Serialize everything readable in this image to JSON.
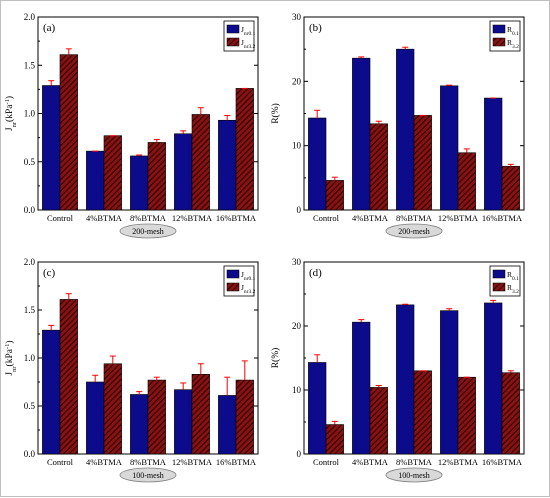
{
  "colors": {
    "series1": "#0b0b8c",
    "series2": "#8b1111",
    "error": "#ff0000",
    "mesh_fill": "#d9d9d9"
  },
  "chart_data": [
    {
      "type": "bar",
      "tag": "(a)",
      "ylabel_main": "J",
      "ylabel_sub": "nr",
      "ylabel_unit": "(kPa",
      "ylabel_sup": "-1",
      "ylabel_close": ")",
      "ylim": [
        0,
        2.0
      ],
      "yticks": [
        "0.0",
        "0.5",
        "1.0",
        "1.5",
        "2.0"
      ],
      "categories": [
        "Control",
        "4%BTMA",
        "8%BTMA",
        "12%BTMA",
        "16%BTMA"
      ],
      "mesh_label": "200-mesh",
      "mesh_under": 2,
      "legend_position": "top-right",
      "series": [
        {
          "name_main": "J",
          "name_sub": "nr0.1",
          "values": [
            1.29,
            0.61,
            0.56,
            0.79,
            0.93
          ],
          "errors": [
            0.05,
            0.0,
            0.01,
            0.03,
            0.05
          ]
        },
        {
          "name_main": "J",
          "name_sub": "nr3.2",
          "values": [
            1.61,
            0.77,
            0.7,
            0.99,
            1.26
          ],
          "errors": [
            0.06,
            0.0,
            0.03,
            0.07,
            0.0
          ]
        }
      ]
    },
    {
      "type": "bar",
      "tag": "(b)",
      "ylabel_main": "R(%)",
      "ylabel_sub": "",
      "ylabel_unit": "",
      "ylabel_sup": "",
      "ylabel_close": "",
      "ylim": [
        0,
        30
      ],
      "yticks": [
        "0",
        "10",
        "20",
        "30"
      ],
      "categories": [
        "Control",
        "4%BTMA",
        "8%BTMA",
        "12%BTMA",
        "16%BTMA"
      ],
      "mesh_label": "200-mesh",
      "mesh_under": 2,
      "legend_position": "top-right",
      "series": [
        {
          "name_main": "R",
          "name_sub": "0.1",
          "values": [
            14.3,
            23.6,
            25.0,
            19.3,
            17.4
          ],
          "errors": [
            1.2,
            0.2,
            0.3,
            0.1,
            0.0
          ]
        },
        {
          "name_main": "R",
          "name_sub": "3.2",
          "values": [
            4.6,
            13.4,
            14.7,
            8.9,
            6.8
          ],
          "errors": [
            0.5,
            0.4,
            0.0,
            0.6,
            0.3
          ]
        }
      ]
    },
    {
      "type": "bar",
      "tag": "(c)",
      "ylabel_main": "J",
      "ylabel_sub": "nr",
      "ylabel_unit": "(kPa",
      "ylabel_sup": "-1",
      "ylabel_close": ")",
      "ylim": [
        0,
        2.0
      ],
      "yticks": [
        "0.0",
        "0.5",
        "1.0",
        "1.5",
        "2.0"
      ],
      "categories": [
        "Control",
        "4%BTMA",
        "8%BTMA",
        "12%BTMA",
        "16%BTMA"
      ],
      "mesh_label": "100-mesh",
      "mesh_under": 2,
      "legend_position": "top-right",
      "series": [
        {
          "name_main": "J",
          "name_sub": "nr0.1",
          "values": [
            1.29,
            0.75,
            0.62,
            0.67,
            0.61
          ],
          "errors": [
            0.05,
            0.07,
            0.03,
            0.07,
            0.19
          ]
        },
        {
          "name_main": "J",
          "name_sub": "nr3.2",
          "values": [
            1.61,
            0.94,
            0.77,
            0.83,
            0.77
          ],
          "errors": [
            0.06,
            0.08,
            0.03,
            0.11,
            0.2
          ]
        }
      ]
    },
    {
      "type": "bar",
      "tag": "(d)",
      "ylabel_main": "R(%)",
      "ylabel_sub": "",
      "ylabel_unit": "",
      "ylabel_sup": "",
      "ylabel_close": "",
      "ylim": [
        0,
        30
      ],
      "yticks": [
        "0",
        "10",
        "20",
        "30"
      ],
      "categories": [
        "Control",
        "4%BTMA",
        "8%BTMA",
        "12%BTMA",
        "16%BTMA"
      ],
      "mesh_label": "100-mesh",
      "mesh_under": 2,
      "legend_position": "top-right",
      "series": [
        {
          "name_main": "R",
          "name_sub": "0.1",
          "values": [
            14.3,
            20.6,
            23.3,
            22.4,
            23.6
          ],
          "errors": [
            1.2,
            0.4,
            0.1,
            0.3,
            0.4
          ]
        },
        {
          "name_main": "R",
          "name_sub": "3.2",
          "values": [
            4.6,
            10.4,
            13.0,
            12.0,
            12.7
          ],
          "errors": [
            0.5,
            0.3,
            0.0,
            0.0,
            0.3
          ]
        }
      ]
    }
  ]
}
